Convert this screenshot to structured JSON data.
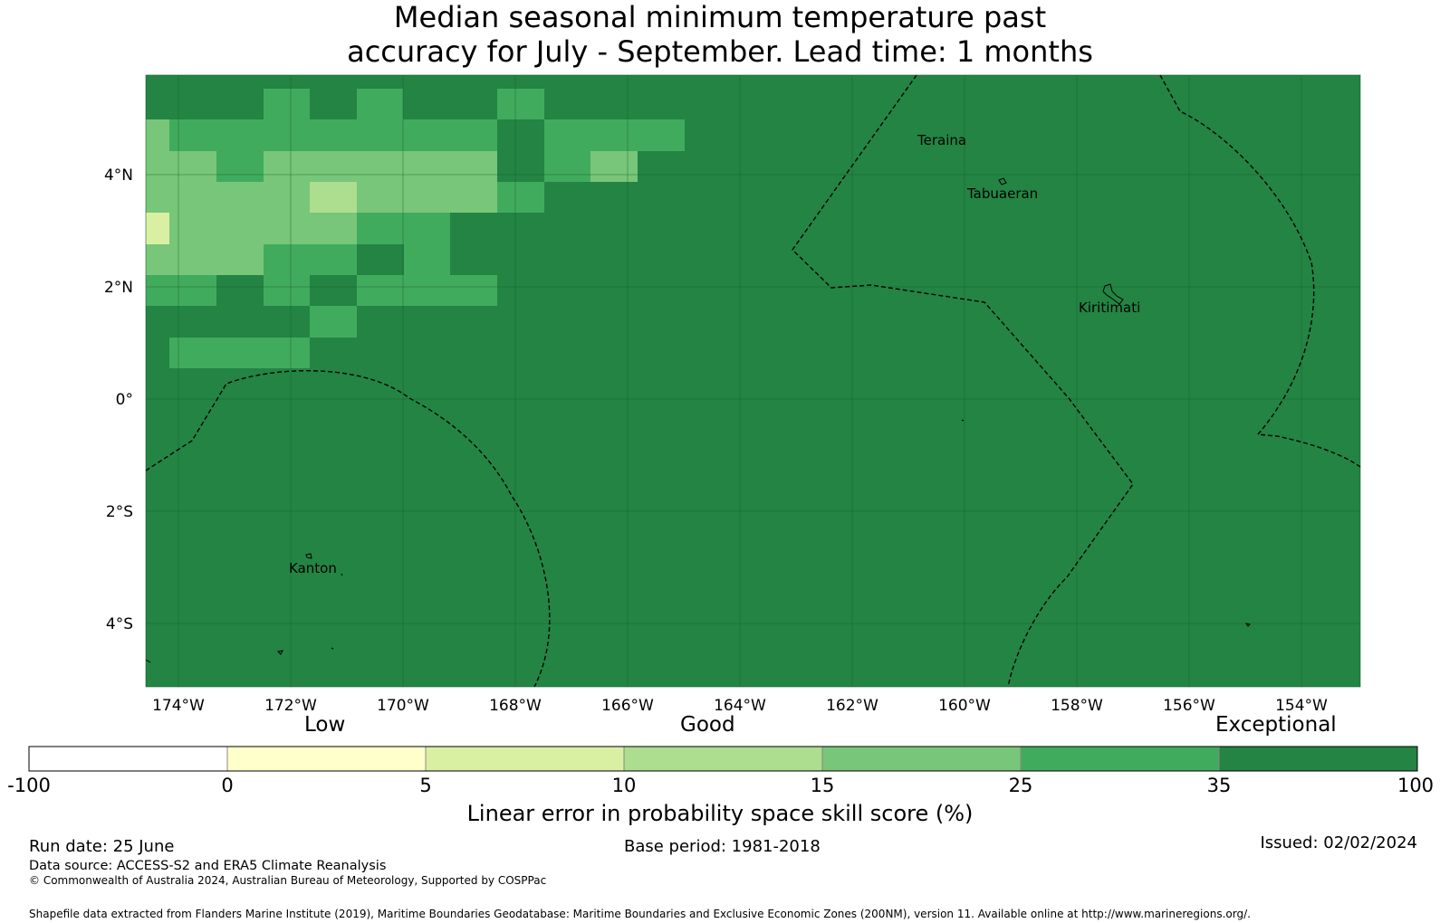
{
  "title_line1": "Median seasonal minimum temperature past",
  "title_line2": "accuracy for July - September. Lead time: 1 months",
  "map": {
    "lat_labels": [
      "4°N",
      "2°N",
      "0°",
      "2°S",
      "4°S"
    ],
    "lon_labels": [
      "174°W",
      "172°W",
      "170°W",
      "168°W",
      "166°W",
      "164°W",
      "162°W",
      "160°W",
      "158°W",
      "156°W",
      "154°W"
    ],
    "places": {
      "teraina": "Teraina",
      "tabuaeran": "Tabuaeran",
      "kiritimati": "Kiritimati",
      "kanton": "Kanton"
    }
  },
  "colorbar": {
    "category_low": "Low",
    "category_good": "Good",
    "category_exceptional": "Exceptional",
    "ticks": [
      "-100",
      "0",
      "5",
      "10",
      "15",
      "25",
      "35",
      "100"
    ],
    "colors": [
      "#ffffff",
      "#ffffcc",
      "#d9f0a3",
      "#addd8e",
      "#78c679",
      "#41ab5d",
      "#238443"
    ],
    "label": "Linear error in probability space skill score (%)"
  },
  "footer": {
    "run_date": "Run date: 25 June",
    "base_period": "Base period: 1981-2018",
    "issued": "Issued: 02/02/2024",
    "data_source": "Data source: ACCESS-S2 and ERA5 Climate Reanalysis",
    "copyright": "© Commonwealth of Australia 2024, Australian Bureau of Meteorology, Supported by COSPPac",
    "shapefile": "Shapefile data extracted from Flanders Marine Institute (2019), Maritime Boundaries Geodatabase: Maritime Boundaries and Exclusive Economic Zones (200NM), version 11. Available online at http://www.marineregions.org/."
  }
}
